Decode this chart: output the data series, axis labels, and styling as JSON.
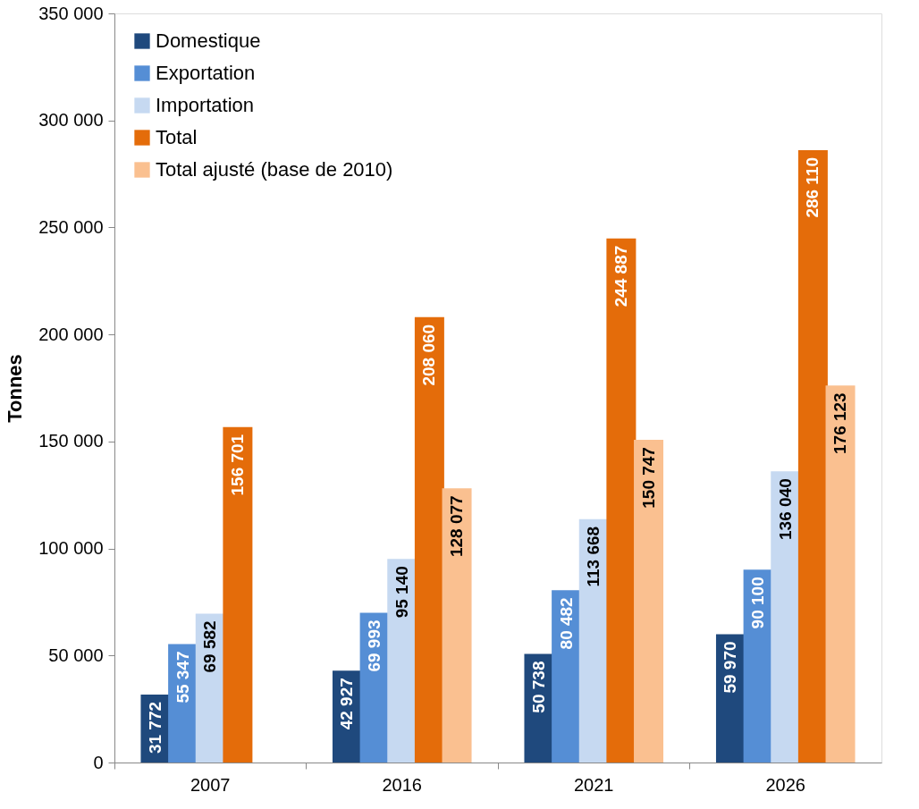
{
  "chart_data": {
    "type": "bar",
    "ylabel": "Tonnes",
    "categories": [
      "2007",
      "2016",
      "2021",
      "2026"
    ],
    "series": [
      {
        "name": "Domestique",
        "color": "#1f497d",
        "values": [
          31772,
          42927,
          50738,
          59970
        ],
        "value_labels": [
          "31 772",
          "42 927",
          "50 738",
          "59 970"
        ]
      },
      {
        "name": "Exportation",
        "color": "#558ed5",
        "values": [
          55347,
          69993,
          80482,
          90100
        ],
        "value_labels": [
          "55 347",
          "69 993",
          "80 482",
          "90 100"
        ]
      },
      {
        "name": "Importation",
        "color": "#c6d9f1",
        "values": [
          69582,
          95140,
          113668,
          136040
        ],
        "value_labels": [
          "69 582",
          "95 140",
          "113 668",
          "136 040"
        ]
      },
      {
        "name": "Total",
        "color": "#e46c0a",
        "values": [
          156701,
          208060,
          244887,
          286110
        ],
        "value_labels": [
          "156 701",
          "208 060",
          "244 887",
          "286 110"
        ]
      },
      {
        "name": "Total ajusté (base de 2010)",
        "color": "#fac090",
        "values": [
          null,
          128077,
          150747,
          176123
        ],
        "value_labels": [
          null,
          "128 077",
          "150 747",
          "176 123"
        ]
      }
    ],
    "ylim": [
      0,
      350000
    ],
    "yticks": [
      0,
      {
        "value": 50000,
        "label": "50 000"
      },
      {
        "value": 100000,
        "label": "100 000"
      },
      {
        "value": 150000,
        "label": "150 000"
      },
      {
        "value": 200000,
        "label": "200 000"
      },
      {
        "value": 250000,
        "label": "250 000"
      },
      {
        "value": 300000,
        "label": "300 000"
      },
      {
        "value": 350000,
        "label": "350 000"
      }
    ],
    "grid": false,
    "legend": "top left"
  }
}
